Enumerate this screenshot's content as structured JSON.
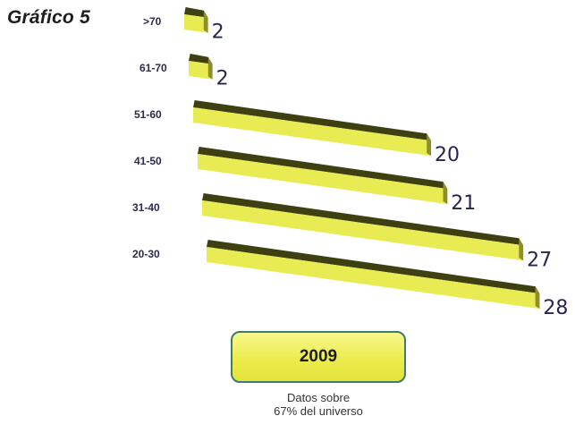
{
  "figure_label": "Gráfico 5",
  "year": "2009",
  "note": {
    "line1": "Datos sobre",
    "line2": "67% del universo"
  },
  "colors": {
    "bar_front": "#e8ec52",
    "bar_top": "#3e4012",
    "bar_side": "#8c8f2a",
    "box_border": "#3f7a73",
    "value_text": "#262650"
  },
  "chart_data": {
    "type": "bar",
    "orientation": "horizontal",
    "style": "3d",
    "title": "",
    "xlabel": "",
    "ylabel": "",
    "categories": [
      ">70",
      "61-70",
      "51-60",
      "41-50",
      "31-40",
      "20-30"
    ],
    "values": [
      2,
      2,
      20,
      21,
      27,
      28
    ],
    "value_labels": [
      "2",
      "2",
      "20",
      "21",
      "27",
      "28"
    ],
    "xlim": [
      0,
      28
    ],
    "grid": false,
    "legend": "none"
  }
}
